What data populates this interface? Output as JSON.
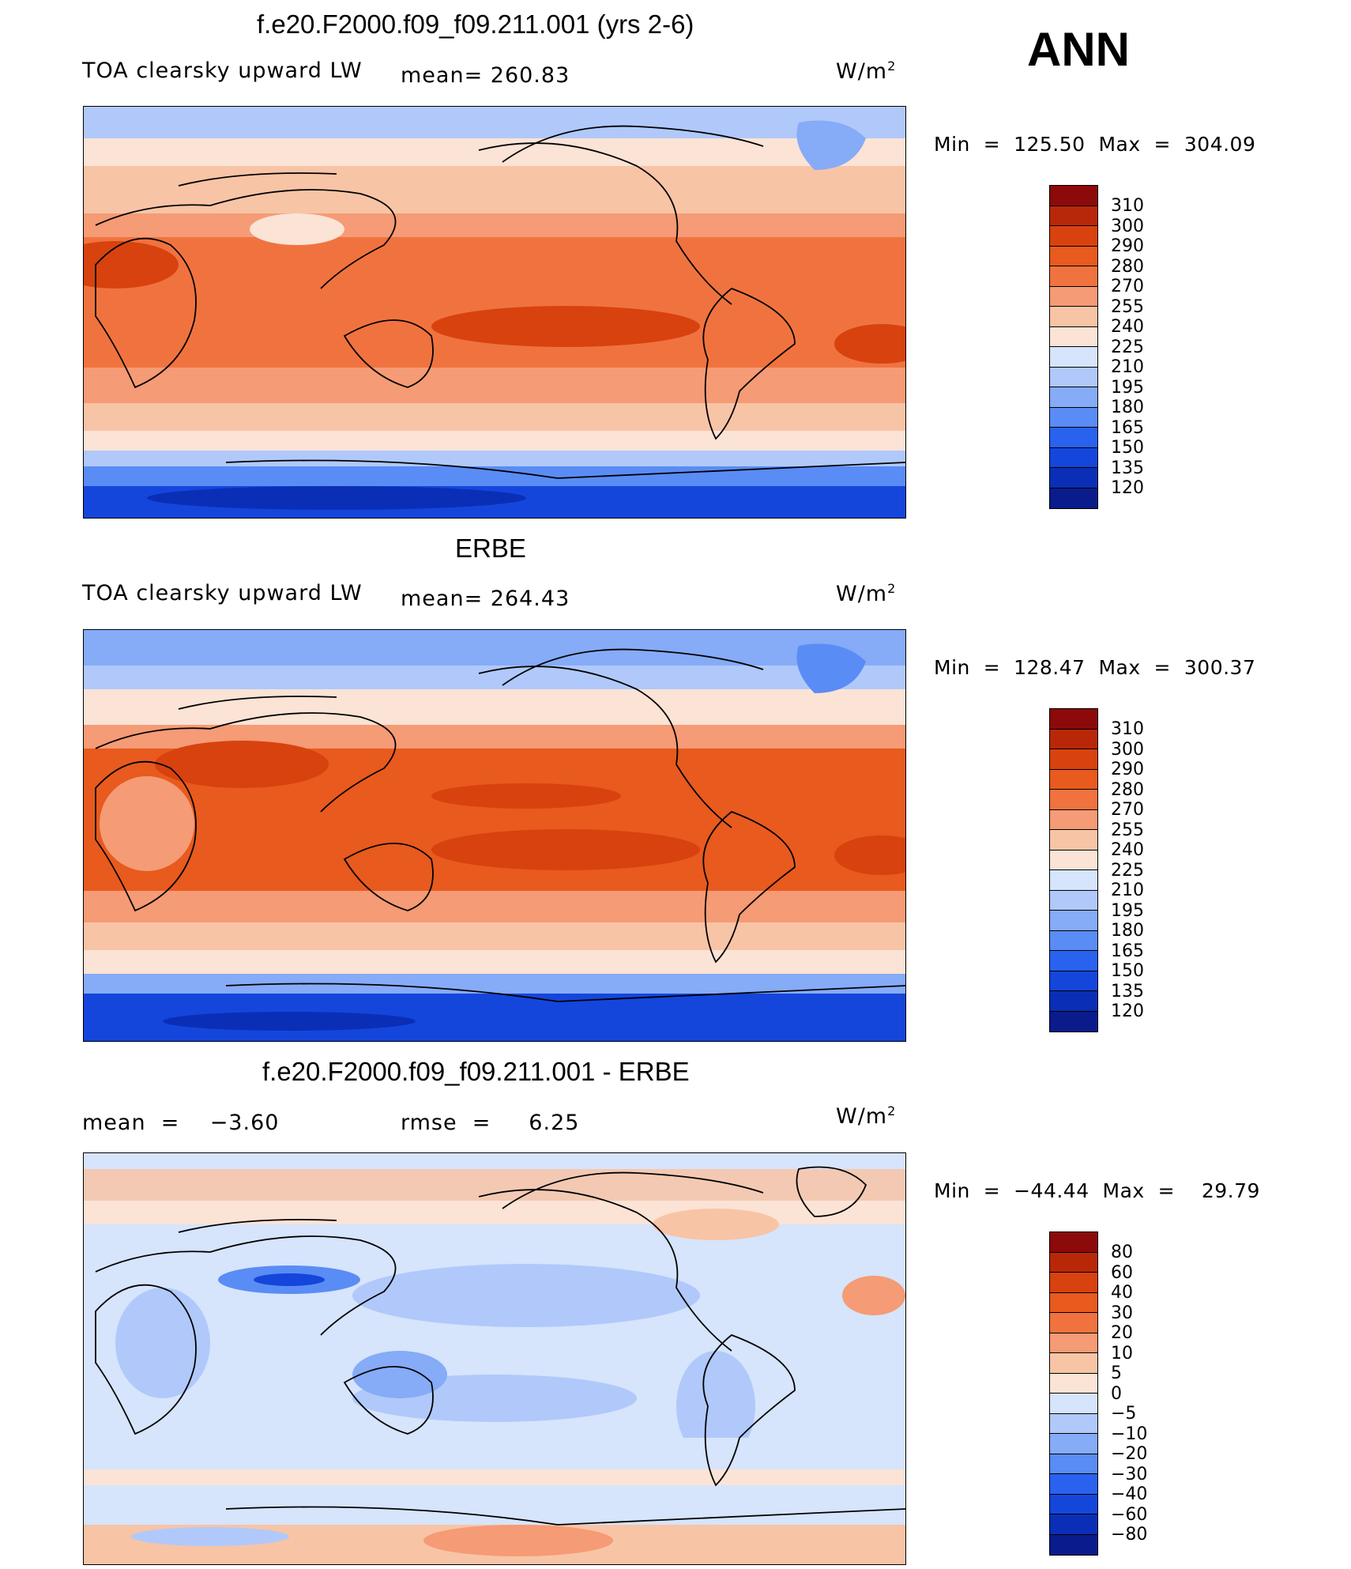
{
  "season": "ANN",
  "colors": {
    "abs_scale": [
      "#0a1c8c",
      "#0a2fb6",
      "#1446dc",
      "#2a62f0",
      "#5a8cf5",
      "#86abf7",
      "#b0c9fa",
      "#d6e4fc",
      "#fbe3d6",
      "#f8c4a6",
      "#f59b75",
      "#f0733f",
      "#e85a1e",
      "#d8420f",
      "#b82808",
      "#8c0a0a"
    ],
    "diff_scale": [
      "#0a1c8c",
      "#0a2fb6",
      "#1446dc",
      "#2a62f0",
      "#5a8cf5",
      "#86abf7",
      "#b0c9fa",
      "#d6e4fc",
      "#fbe3d6",
      "#f8c4a6",
      "#f59b75",
      "#f0733f",
      "#e85a1e",
      "#d8420f",
      "#b82808",
      "#8c0a0a"
    ]
  },
  "panels": [
    {
      "title": "f.e20.F2000.f09_f09.211.001 (yrs 2-6)",
      "left_label": "TOA clearsky upward LW",
      "center_label": "mean=  260.83",
      "units": "W/m",
      "units_sup": "2",
      "minmax": "Min  =  125.50  Max  =  304.09",
      "levels": [
        "310",
        "300",
        "290",
        "280",
        "270",
        "255",
        "240",
        "225",
        "210",
        "195",
        "180",
        "165",
        "150",
        "135",
        "120"
      ]
    },
    {
      "title": "ERBE",
      "left_label": "TOA clearsky upward LW",
      "center_label": "mean=  264.43",
      "units": "W/m",
      "units_sup": "2",
      "minmax": "Min  =  128.47  Max  =  300.37",
      "levels": [
        "310",
        "300",
        "290",
        "280",
        "270",
        "255",
        "240",
        "225",
        "210",
        "195",
        "180",
        "165",
        "150",
        "135",
        "120"
      ]
    },
    {
      "title": "f.e20.F2000.f09_f09.211.001 - ERBE",
      "left_label": "mean  =    −3.60",
      "center_label": "rmse  =     6.25",
      "units": "W/m",
      "units_sup": "2",
      "minmax": "Min  =  −44.44  Max  =    29.79",
      "levels": [
        "80",
        "60",
        "40",
        "30",
        "20",
        "10",
        "5",
        "0",
        "−5",
        "−10",
        "−20",
        "−30",
        "−40",
        "−60",
        "−80"
      ]
    }
  ]
}
